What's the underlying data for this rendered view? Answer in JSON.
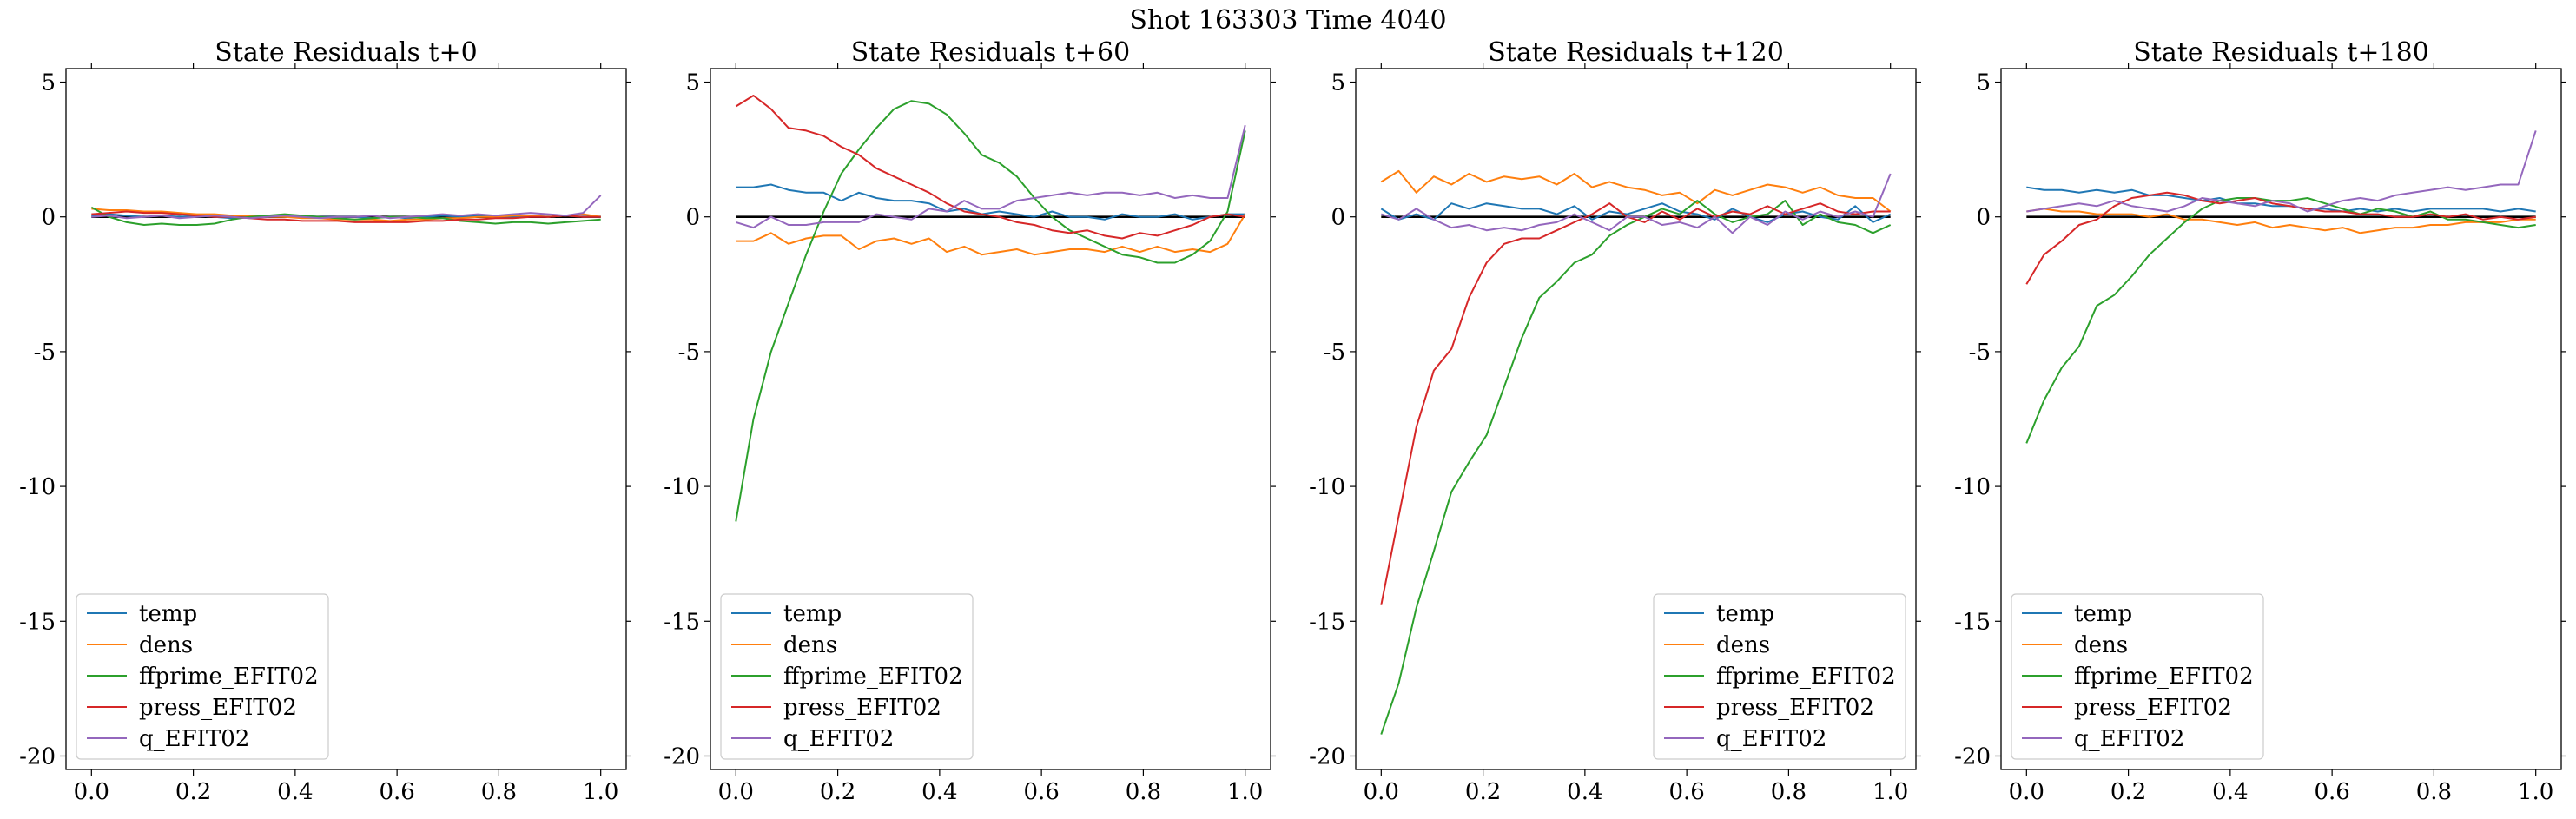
{
  "suptitle": "Shot 163303   Time 4040",
  "chart_data": [
    {
      "type": "line",
      "title": "State Residuals t+0",
      "xlim": [
        -0.05,
        1.05
      ],
      "ylim": [
        -20.5,
        5.5
      ],
      "xticks": [
        "0.0",
        "0.2",
        "0.4",
        "0.6",
        "0.8",
        "1.0"
      ],
      "yticks": [
        "5",
        "0",
        "-5",
        "-10",
        "-15",
        "-20"
      ],
      "legend_position": "lower-left",
      "x": [
        0.0,
        0.0345,
        0.069,
        0.1034,
        0.1379,
        0.1724,
        0.2069,
        0.2414,
        0.2759,
        0.3103,
        0.3448,
        0.3793,
        0.4138,
        0.4483,
        0.4828,
        0.5172,
        0.5517,
        0.5862,
        0.6207,
        0.6552,
        0.6897,
        0.7241,
        0.7586,
        0.7931,
        0.8276,
        0.8621,
        0.8966,
        0.931,
        0.9655,
        1.0
      ],
      "series": [
        {
          "name": "temp",
          "color": "#1f77b4",
          "values": [
            0.05,
            0.1,
            0.05,
            0.0,
            0.05,
            0.0,
            0.05,
            0.0,
            -0.05,
            0.0,
            0.05,
            0.0,
            0.05,
            0.0,
            0.0,
            0.0,
            -0.05,
            0.0,
            -0.05,
            0.0,
            0.05,
            0.0,
            0.05,
            0.0,
            0.0,
            0.05,
            0.0,
            0.05,
            0.0,
            0.0
          ]
        },
        {
          "name": "dens",
          "color": "#ff7f0e",
          "values": [
            0.3,
            0.25,
            0.25,
            0.2,
            0.2,
            0.15,
            0.1,
            0.1,
            0.05,
            0.05,
            0.0,
            0.0,
            -0.05,
            -0.05,
            -0.1,
            -0.1,
            -0.1,
            -0.15,
            -0.1,
            -0.1,
            -0.05,
            -0.05,
            0.0,
            0.0,
            0.05,
            0.05,
            0.0,
            0.05,
            0.1,
            0.0
          ]
        },
        {
          "name": "ffprime_EFIT02",
          "color": "#2ca02c",
          "values": [
            0.35,
            0.0,
            -0.2,
            -0.3,
            -0.25,
            -0.3,
            -0.3,
            -0.25,
            -0.1,
            0.0,
            0.05,
            0.1,
            0.05,
            0.0,
            -0.05,
            -0.1,
            -0.05,
            0.0,
            0.0,
            -0.05,
            -0.05,
            -0.15,
            -0.2,
            -0.25,
            -0.2,
            -0.2,
            -0.25,
            -0.2,
            -0.15,
            -0.1
          ]
        },
        {
          "name": "press_EFIT02",
          "color": "#d62728",
          "values": [
            0.1,
            0.15,
            0.2,
            0.15,
            0.15,
            0.1,
            0.05,
            0.0,
            0.0,
            -0.05,
            -0.1,
            -0.1,
            -0.15,
            -0.15,
            -0.15,
            -0.2,
            -0.2,
            -0.2,
            -0.2,
            -0.15,
            -0.15,
            -0.1,
            -0.1,
            -0.05,
            -0.05,
            0.0,
            0.0,
            0.05,
            0.0,
            0.0
          ]
        },
        {
          "name": "q_EFIT02",
          "color": "#9467bd",
          "values": [
            0.0,
            0.05,
            -0.05,
            0.0,
            0.05,
            -0.05,
            0.0,
            0.05,
            0.0,
            -0.05,
            0.0,
            0.05,
            0.0,
            -0.05,
            0.0,
            0.0,
            0.05,
            -0.05,
            0.0,
            0.05,
            0.1,
            0.05,
            0.1,
            0.05,
            0.1,
            0.15,
            0.1,
            0.05,
            0.15,
            0.8
          ]
        }
      ]
    },
    {
      "type": "line",
      "title": "State Residuals t+60",
      "xlim": [
        -0.05,
        1.05
      ],
      "ylim": [
        -20.5,
        5.5
      ],
      "xticks": [
        "0.0",
        "0.2",
        "0.4",
        "0.6",
        "0.8",
        "1.0"
      ],
      "yticks": [
        "5",
        "0",
        "-5",
        "-10",
        "-15",
        "-20"
      ],
      "legend_position": "lower-left",
      "x": [
        0.0,
        0.0345,
        0.069,
        0.1034,
        0.1379,
        0.1724,
        0.2069,
        0.2414,
        0.2759,
        0.3103,
        0.3448,
        0.3793,
        0.4138,
        0.4483,
        0.4828,
        0.5172,
        0.5517,
        0.5862,
        0.6207,
        0.6552,
        0.6897,
        0.7241,
        0.7586,
        0.7931,
        0.8276,
        0.8621,
        0.8966,
        0.931,
        0.9655,
        1.0
      ],
      "series": [
        {
          "name": "temp",
          "color": "#1f77b4",
          "values": [
            1.1,
            1.1,
            1.2,
            1.0,
            0.9,
            0.9,
            0.6,
            0.9,
            0.7,
            0.6,
            0.6,
            0.5,
            0.2,
            0.3,
            0.1,
            0.2,
            0.1,
            0.0,
            0.2,
            0.0,
            0.0,
            -0.1,
            0.1,
            0.0,
            0.0,
            0.1,
            -0.1,
            0.0,
            0.1,
            0.1
          ]
        },
        {
          "name": "dens",
          "color": "#ff7f0e",
          "values": [
            -0.9,
            -0.9,
            -0.6,
            -1.0,
            -0.8,
            -0.7,
            -0.7,
            -1.2,
            -0.9,
            -0.8,
            -1.0,
            -0.8,
            -1.3,
            -1.1,
            -1.4,
            -1.3,
            -1.2,
            -1.4,
            -1.3,
            -1.2,
            -1.2,
            -1.3,
            -1.1,
            -1.3,
            -1.1,
            -1.3,
            -1.2,
            -1.3,
            -1.0,
            0.1
          ]
        },
        {
          "name": "ffprime_EFIT02",
          "color": "#2ca02c",
          "values": [
            -11.3,
            -7.5,
            -5.0,
            -3.2,
            -1.4,
            0.2,
            1.6,
            2.5,
            3.3,
            4.0,
            4.3,
            4.2,
            3.8,
            3.1,
            2.3,
            2.0,
            1.5,
            0.7,
            0.0,
            -0.5,
            -0.8,
            -1.1,
            -1.4,
            -1.5,
            -1.7,
            -1.7,
            -1.4,
            -0.9,
            0.2,
            3.2
          ]
        },
        {
          "name": "press_EFIT02",
          "color": "#d62728",
          "values": [
            4.1,
            4.5,
            4.0,
            3.3,
            3.2,
            3.0,
            2.6,
            2.3,
            1.8,
            1.5,
            1.2,
            0.9,
            0.5,
            0.2,
            0.1,
            0.0,
            -0.2,
            -0.3,
            -0.5,
            -0.6,
            -0.5,
            -0.7,
            -0.8,
            -0.6,
            -0.7,
            -0.5,
            -0.3,
            0.0,
            0.1,
            0.0
          ]
        },
        {
          "name": "q_EFIT02",
          "color": "#9467bd",
          "values": [
            -0.2,
            -0.4,
            0.0,
            -0.3,
            -0.3,
            -0.2,
            -0.2,
            -0.2,
            0.1,
            0.0,
            -0.1,
            0.3,
            0.2,
            0.6,
            0.3,
            0.3,
            0.6,
            0.7,
            0.8,
            0.9,
            0.8,
            0.9,
            0.9,
            0.8,
            0.9,
            0.7,
            0.8,
            0.7,
            0.7,
            3.4
          ]
        }
      ]
    },
    {
      "type": "line",
      "title": "State Residuals t+120",
      "xlim": [
        -0.05,
        1.05
      ],
      "ylim": [
        -20.5,
        5.5
      ],
      "xticks": [
        "0.0",
        "0.2",
        "0.4",
        "0.6",
        "0.8",
        "1.0"
      ],
      "yticks": [
        "5",
        "0",
        "-5",
        "-10",
        "-15",
        "-20"
      ],
      "legend_position": "lower-right",
      "x": [
        0.0,
        0.0345,
        0.069,
        0.1034,
        0.1379,
        0.1724,
        0.2069,
        0.2414,
        0.2759,
        0.3103,
        0.3448,
        0.3793,
        0.4138,
        0.4483,
        0.4828,
        0.5172,
        0.5517,
        0.5862,
        0.6207,
        0.6552,
        0.6897,
        0.7241,
        0.7586,
        0.7931,
        0.8276,
        0.8621,
        0.8966,
        0.931,
        0.9655,
        1.0
      ],
      "series": [
        {
          "name": "temp",
          "color": "#1f77b4",
          "values": [
            0.3,
            -0.1,
            0.1,
            -0.1,
            0.5,
            0.3,
            0.5,
            0.4,
            0.3,
            0.3,
            0.1,
            0.4,
            -0.1,
            0.2,
            0.1,
            0.3,
            0.5,
            0.2,
            0.1,
            -0.1,
            0.3,
            0.0,
            -0.2,
            0.1,
            0.2,
            0.0,
            -0.1,
            0.4,
            -0.2,
            0.1
          ]
        },
        {
          "name": "dens",
          "color": "#ff7f0e",
          "values": [
            1.3,
            1.7,
            0.9,
            1.5,
            1.2,
            1.6,
            1.3,
            1.5,
            1.4,
            1.5,
            1.2,
            1.6,
            1.1,
            1.3,
            1.1,
            1.0,
            0.8,
            0.9,
            0.5,
            1.0,
            0.8,
            1.0,
            1.2,
            1.1,
            0.9,
            1.1,
            0.8,
            0.7,
            0.7,
            0.2
          ]
        },
        {
          "name": "ffprime_EFIT02",
          "color": "#2ca02c",
          "values": [
            -19.2,
            -17.3,
            -14.5,
            -12.4,
            -10.2,
            -9.1,
            -8.1,
            -6.3,
            -4.5,
            -3.0,
            -2.4,
            -1.7,
            -1.4,
            -0.7,
            -0.3,
            0.0,
            0.3,
            0.1,
            0.6,
            0.1,
            -0.2,
            0.0,
            0.1,
            0.6,
            -0.3,
            0.1,
            -0.2,
            -0.3,
            -0.6,
            -0.3
          ]
        },
        {
          "name": "press_EFIT02",
          "color": "#d62728",
          "values": [
            -14.4,
            -11.1,
            -7.8,
            -5.7,
            -4.9,
            -3.0,
            -1.7,
            -1.0,
            -0.8,
            -0.8,
            -0.5,
            -0.2,
            0.1,
            0.5,
            0.0,
            -0.2,
            0.2,
            -0.1,
            0.3,
            0.0,
            0.2,
            0.1,
            0.4,
            0.1,
            0.3,
            0.5,
            0.2,
            0.1,
            0.2,
            0.2
          ]
        },
        {
          "name": "q_EFIT02",
          "color": "#9467bd",
          "values": [
            0.1,
            -0.1,
            0.3,
            -0.1,
            -0.4,
            -0.3,
            -0.5,
            -0.4,
            -0.5,
            -0.3,
            -0.2,
            0.1,
            -0.2,
            -0.5,
            0.0,
            0.0,
            -0.3,
            -0.2,
            -0.4,
            0.0,
            -0.6,
            0.0,
            -0.3,
            0.2,
            -0.1,
            0.2,
            0.0,
            0.2,
            0.0,
            1.6
          ]
        }
      ]
    },
    {
      "type": "line",
      "title": "State Residuals t+180",
      "xlim": [
        -0.05,
        1.05
      ],
      "ylim": [
        -20.5,
        5.5
      ],
      "xticks": [
        "0.0",
        "0.2",
        "0.4",
        "0.6",
        "0.8",
        "1.0"
      ],
      "yticks": [
        "5",
        "0",
        "-5",
        "-10",
        "-15",
        "-20"
      ],
      "legend_position": "lower-left",
      "x": [
        0.0,
        0.0345,
        0.069,
        0.1034,
        0.1379,
        0.1724,
        0.2069,
        0.2414,
        0.2759,
        0.3103,
        0.3448,
        0.3793,
        0.4138,
        0.4483,
        0.4828,
        0.5172,
        0.5517,
        0.5862,
        0.6207,
        0.6552,
        0.6897,
        0.7241,
        0.7586,
        0.7931,
        0.8276,
        0.8621,
        0.8966,
        0.931,
        0.9655,
        1.0
      ],
      "series": [
        {
          "name": "temp",
          "color": "#1f77b4",
          "values": [
            1.1,
            1.0,
            1.0,
            0.9,
            1.0,
            0.9,
            1.0,
            0.8,
            0.8,
            0.7,
            0.6,
            0.7,
            0.5,
            0.5,
            0.4,
            0.4,
            0.3,
            0.3,
            0.2,
            0.3,
            0.2,
            0.3,
            0.2,
            0.3,
            0.3,
            0.3,
            0.3,
            0.2,
            0.3,
            0.2
          ]
        },
        {
          "name": "dens",
          "color": "#ff7f0e",
          "values": [
            0.2,
            0.3,
            0.2,
            0.2,
            0.1,
            0.1,
            0.1,
            0.0,
            0.1,
            -0.1,
            -0.1,
            -0.2,
            -0.3,
            -0.2,
            -0.4,
            -0.3,
            -0.4,
            -0.5,
            -0.4,
            -0.6,
            -0.5,
            -0.4,
            -0.4,
            -0.3,
            -0.3,
            -0.2,
            -0.2,
            -0.2,
            -0.1,
            -0.1
          ]
        },
        {
          "name": "ffprime_EFIT02",
          "color": "#2ca02c",
          "values": [
            -8.4,
            -6.8,
            -5.6,
            -4.8,
            -3.3,
            -2.9,
            -2.2,
            -1.4,
            -0.8,
            -0.2,
            0.3,
            0.6,
            0.7,
            0.7,
            0.6,
            0.6,
            0.7,
            0.5,
            0.3,
            0.1,
            0.3,
            0.2,
            0.0,
            0.2,
            -0.1,
            -0.1,
            -0.2,
            -0.3,
            -0.4,
            -0.3
          ]
        },
        {
          "name": "press_EFIT02",
          "color": "#d62728",
          "values": [
            -2.5,
            -1.4,
            -0.9,
            -0.3,
            -0.1,
            0.4,
            0.7,
            0.8,
            0.9,
            0.8,
            0.6,
            0.5,
            0.6,
            0.7,
            0.5,
            0.4,
            0.3,
            0.2,
            0.2,
            0.1,
            0.1,
            0.0,
            0.0,
            0.1,
            0.0,
            0.1,
            -0.1,
            0.0,
            -0.1,
            0.0
          ]
        },
        {
          "name": "q_EFIT02",
          "color": "#9467bd",
          "values": [
            0.2,
            0.3,
            0.4,
            0.5,
            0.4,
            0.6,
            0.4,
            0.3,
            0.2,
            0.4,
            0.7,
            0.6,
            0.5,
            0.4,
            0.6,
            0.5,
            0.2,
            0.4,
            0.6,
            0.7,
            0.6,
            0.8,
            0.9,
            1.0,
            1.1,
            1.0,
            1.1,
            1.2,
            1.2,
            3.2
          ]
        }
      ]
    }
  ]
}
